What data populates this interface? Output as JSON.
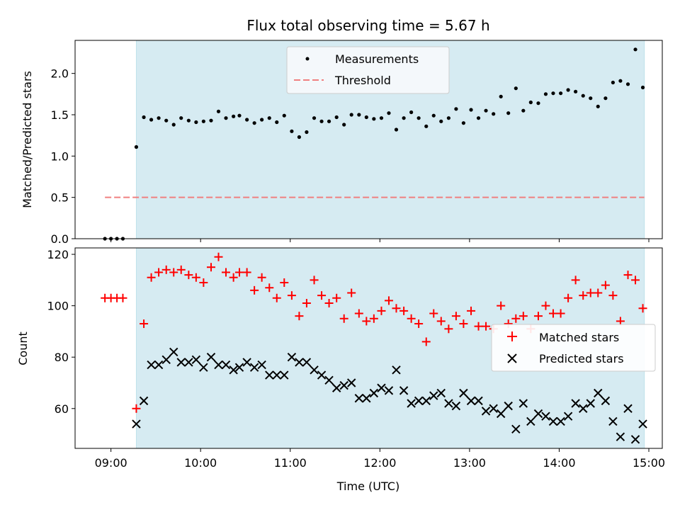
{
  "chart_data": [
    {
      "type": "scatter",
      "title": "Flux total observing time = 5.67 h",
      "xlabel": "",
      "ylabel": "Matched/Predicted stars",
      "ylim": [
        0,
        2.4
      ],
      "yticks": [
        "0.0",
        "0.5",
        "1.0",
        "1.5",
        "2.0"
      ],
      "ytick_values": [
        0,
        0.5,
        1.0,
        1.5,
        2.0
      ],
      "legend_position": "upper-center",
      "grid": false,
      "shaded_span": {
        "start_hours": 9.283,
        "end_hours": 14.95,
        "color": "#add8e6"
      },
      "series": [
        {
          "name": "Measurements",
          "marker": "dot",
          "color": "#000000",
          "x_hours": [
            8.933,
            9.0,
            9.067,
            9.133,
            9.283,
            9.367,
            9.45,
            9.533,
            9.617,
            9.7,
            9.783,
            9.867,
            9.95,
            10.033,
            10.117,
            10.2,
            10.283,
            10.367,
            10.433,
            10.517,
            10.6,
            10.683,
            10.767,
            10.85,
            10.933,
            11.017,
            11.1,
            11.183,
            11.267,
            11.35,
            11.433,
            11.517,
            11.6,
            11.683,
            11.767,
            11.85,
            11.933,
            12.017,
            12.1,
            12.183,
            12.267,
            12.35,
            12.433,
            12.517,
            12.6,
            12.683,
            12.767,
            12.85,
            12.933,
            13.017,
            13.1,
            13.183,
            13.267,
            13.35,
            13.433,
            13.517,
            13.6,
            13.683,
            13.767,
            13.85,
            13.933,
            14.017,
            14.1,
            14.183,
            14.267,
            14.35,
            14.433,
            14.517,
            14.6,
            14.683,
            14.767,
            14.85,
            14.933
          ],
          "y": [
            0.0,
            0.0,
            0.0,
            0.0,
            1.11,
            1.47,
            1.44,
            1.46,
            1.43,
            1.38,
            1.46,
            1.43,
            1.41,
            1.42,
            1.43,
            1.54,
            1.46,
            1.48,
            1.49,
            1.44,
            1.4,
            1.44,
            1.46,
            1.41,
            1.49,
            1.3,
            1.23,
            1.29,
            1.46,
            1.42,
            1.42,
            1.47,
            1.38,
            1.5,
            1.5,
            1.47,
            1.45,
            1.46,
            1.52,
            1.32,
            1.46,
            1.53,
            1.46,
            1.36,
            1.49,
            1.42,
            1.46,
            1.57,
            1.4,
            1.56,
            1.46,
            1.55,
            1.51,
            1.72,
            1.52,
            1.82,
            1.55,
            1.65,
            1.64,
            1.75,
            1.76,
            1.76,
            1.8,
            1.78,
            1.73,
            1.7,
            1.6,
            1.7,
            1.89,
            1.91,
            1.87,
            2.29,
            1.83
          ]
        },
        {
          "name": "Threshold",
          "marker": "dashed-line",
          "color": "#f08080",
          "x_hours": [
            8.933,
            14.95
          ],
          "y": [
            0.5,
            0.5
          ]
        }
      ]
    },
    {
      "type": "scatter",
      "title": "",
      "xlabel": "Time (UTC)",
      "ylabel": "Count",
      "ylim": [
        44.5,
        122.5
      ],
      "yticks": [
        "60",
        "80",
        "100",
        "120"
      ],
      "ytick_values": [
        60,
        80,
        100,
        120
      ],
      "xlim_hours": [
        8.6,
        15.15
      ],
      "xticks": [
        "09:00",
        "10:00",
        "11:00",
        "12:00",
        "13:00",
        "14:00",
        "15:00"
      ],
      "xtick_values_hours": [
        9,
        10,
        11,
        12,
        13,
        14,
        15
      ],
      "legend_position": "center-right",
      "grid": false,
      "shaded_span": {
        "start_hours": 9.283,
        "end_hours": 14.95,
        "color": "#add8e6"
      },
      "series": [
        {
          "name": "Matched stars",
          "marker": "plus",
          "color": "#ff0000",
          "x_hours": [
            8.933,
            9.0,
            9.067,
            9.133,
            9.283,
            9.367,
            9.45,
            9.533,
            9.617,
            9.7,
            9.783,
            9.867,
            9.95,
            10.033,
            10.117,
            10.2,
            10.283,
            10.367,
            10.433,
            10.517,
            10.6,
            10.683,
            10.767,
            10.85,
            10.933,
            11.017,
            11.1,
            11.183,
            11.267,
            11.35,
            11.433,
            11.517,
            11.6,
            11.683,
            11.767,
            11.85,
            11.933,
            12.017,
            12.1,
            12.183,
            12.267,
            12.35,
            12.433,
            12.517,
            12.6,
            12.683,
            12.767,
            12.85,
            12.933,
            13.017,
            13.1,
            13.183,
            13.267,
            13.35,
            13.433,
            13.517,
            13.6,
            13.683,
            13.767,
            13.85,
            13.933,
            14.017,
            14.1,
            14.183,
            14.267,
            14.35,
            14.433,
            14.517,
            14.6,
            14.683,
            14.767,
            14.85,
            14.933
          ],
          "y": [
            103,
            103,
            103,
            103,
            60,
            93,
            111,
            113,
            114,
            113,
            114,
            112,
            111,
            109,
            115,
            119,
            113,
            111,
            113,
            113,
            106,
            111,
            107,
            103,
            109,
            104,
            96,
            101,
            110,
            104,
            101,
            103,
            95,
            105,
            97,
            94,
            95,
            98,
            102,
            99,
            98,
            95,
            93,
            86,
            97,
            94,
            91,
            96,
            93,
            98,
            92,
            92,
            91,
            100,
            93,
            95,
            96,
            91,
            96,
            100,
            97,
            97,
            103,
            110,
            104,
            105,
            105,
            108,
            104,
            94,
            112,
            110,
            99
          ]
        },
        {
          "name": "Predicted stars",
          "marker": "x",
          "color": "#000000",
          "x_hours": [
            9.283,
            9.367,
            9.45,
            9.533,
            9.617,
            9.7,
            9.783,
            9.867,
            9.95,
            10.033,
            10.117,
            10.2,
            10.283,
            10.367,
            10.433,
            10.517,
            10.6,
            10.683,
            10.767,
            10.85,
            10.933,
            11.017,
            11.1,
            11.183,
            11.267,
            11.35,
            11.433,
            11.517,
            11.6,
            11.683,
            11.767,
            11.85,
            11.933,
            12.017,
            12.1,
            12.183,
            12.267,
            12.35,
            12.433,
            12.517,
            12.6,
            12.683,
            12.767,
            12.85,
            12.933,
            13.017,
            13.1,
            13.183,
            13.267,
            13.35,
            13.433,
            13.517,
            13.6,
            13.683,
            13.767,
            13.85,
            13.933,
            14.017,
            14.1,
            14.183,
            14.267,
            14.35,
            14.433,
            14.517,
            14.6,
            14.683,
            14.767,
            14.85,
            14.933
          ],
          "y": [
            54,
            63,
            77,
            77,
            79,
            82,
            78,
            78,
            79,
            76,
            80,
            77,
            77,
            75,
            76,
            78,
            76,
            77,
            73,
            73,
            73,
            80,
            78,
            78,
            75,
            73,
            71,
            68,
            69,
            70,
            64,
            64,
            66,
            68,
            67,
            75,
            67,
            62,
            63,
            63,
            65,
            66,
            62,
            61,
            66,
            63,
            63,
            59,
            60,
            58,
            61,
            52,
            62,
            55,
            58,
            57,
            55,
            55,
            57,
            62,
            60,
            62,
            66,
            63,
            55,
            49,
            60,
            48,
            54
          ]
        }
      ]
    }
  ]
}
